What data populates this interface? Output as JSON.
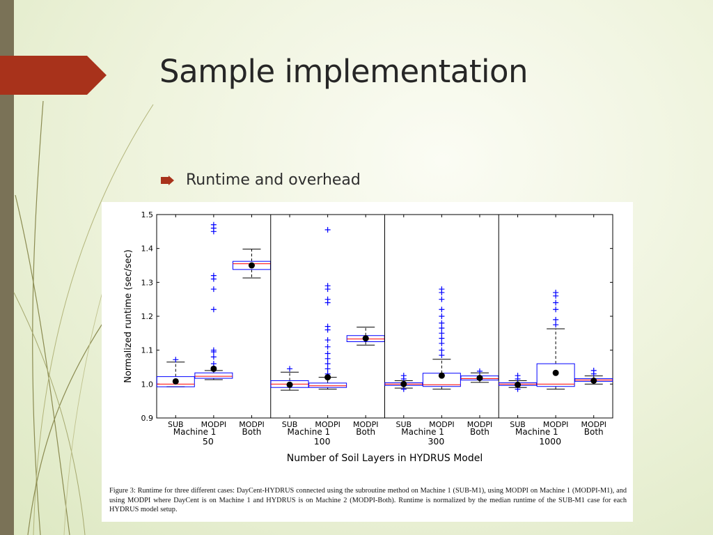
{
  "slide": {
    "title": "Sample implementation",
    "bullet": "Runtime and overhead"
  },
  "theme": {
    "accent": "#a8321b",
    "sidebar": "#7a7257",
    "line_art": "#8a8a50",
    "bullet_icon": "arrow-right-icon"
  },
  "figure": {
    "caption": "Figure 3: Runtime for three different cases: DayCent-HYDRUS connected using the subroutine method on Machine 1 (SUB-M1), using MODPI on Machine 1 (MODPI-M1), and using MODPI where DayCent is on Machine 1 and HYDRUS is on Machine 2 (MODPI-Both). Runtime is normalized by the median runtime of the SUB-M1 case for each HYDRUS model setup."
  },
  "chart_data": {
    "type": "box",
    "ylabel": "Normalized runtime (sec/sec)",
    "xlabel": "Number of Soil Layers in HYDRUS Model",
    "ylim": [
      0.9,
      1.5
    ],
    "yticks": [
      "0.9",
      "1.0",
      "1.1",
      "1.2",
      "1.3",
      "1.4",
      "1.5"
    ],
    "grid": false,
    "colors": {
      "box": "#0000ff",
      "median": "#ff0000",
      "whisker": "#000000",
      "flier": "#0000ff",
      "mean": "#000000"
    },
    "groups": [
      {
        "label": "50",
        "machine_label": "Machine 1",
        "both_label": "Both",
        "boxes": [
          {
            "name": "SUB",
            "q1": 0.992,
            "median": 1.0,
            "q3": 1.022,
            "whisker_low": 0.992,
            "whisker_high": 1.065,
            "mean": 1.008,
            "fliers": [
              1.072
            ]
          },
          {
            "name": "MODPI",
            "q1": 1.017,
            "median": 1.023,
            "q3": 1.033,
            "whisker_low": 1.013,
            "whisker_high": 1.04,
            "mean": 1.045,
            "fliers": [
              1.05,
              1.06,
              1.08,
              1.095,
              1.1,
              1.22,
              1.28,
              1.31,
              1.32,
              1.45,
              1.46,
              1.47
            ]
          },
          {
            "name": "MODPI",
            "q1": 1.338,
            "median": 1.355,
            "q3": 1.362,
            "whisker_low": 1.313,
            "whisker_high": 1.398,
            "mean": 1.35,
            "fliers": []
          }
        ]
      },
      {
        "label": "100",
        "machine_label": "Machine 1",
        "both_label": "Both",
        "boxes": [
          {
            "name": "SUB",
            "q1": 0.99,
            "median": 1.0,
            "q3": 1.01,
            "whisker_low": 0.982,
            "whisker_high": 1.035,
            "mean": 0.998,
            "fliers": [
              1.045
            ]
          },
          {
            "name": "MODPI",
            "q1": 0.99,
            "median": 0.995,
            "q3": 1.003,
            "whisker_low": 0.985,
            "whisker_high": 1.02,
            "mean": 1.02,
            "fliers": [
              1.03,
              1.045,
              1.06,
              1.075,
              1.09,
              1.11,
              1.13,
              1.16,
              1.17,
              1.24,
              1.25,
              1.28,
              1.29,
              1.455
            ]
          },
          {
            "name": "MODPI",
            "q1": 1.125,
            "median": 1.133,
            "q3": 1.143,
            "whisker_low": 1.115,
            "whisker_high": 1.168,
            "mean": 1.135,
            "fliers": []
          }
        ]
      },
      {
        "label": "300",
        "machine_label": "Machine 1",
        "both_label": "Both",
        "boxes": [
          {
            "name": "SUB",
            "q1": 0.996,
            "median": 1.0,
            "q3": 1.004,
            "whisker_low": 0.988,
            "whisker_high": 1.01,
            "mean": 1.0,
            "fliers": [
              0.985,
              1.015,
              1.025
            ]
          },
          {
            "name": "MODPI",
            "q1": 0.993,
            "median": 0.998,
            "q3": 1.032,
            "whisker_low": 0.985,
            "whisker_high": 1.073,
            "mean": 1.025,
            "fliers": [
              1.085,
              1.1,
              1.12,
              1.135,
              1.15,
              1.165,
              1.18,
              1.2,
              1.22,
              1.25,
              1.27,
              1.28
            ]
          },
          {
            "name": "MODPI",
            "q1": 1.012,
            "median": 1.016,
            "q3": 1.024,
            "whisker_low": 1.005,
            "whisker_high": 1.033,
            "mean": 1.018,
            "fliers": [
              1.038
            ]
          }
        ]
      },
      {
        "label": "1000",
        "machine_label": "Machine 1",
        "both_label": "Both",
        "boxes": [
          {
            "name": "SUB",
            "q1": 0.996,
            "median": 1.0,
            "q3": 1.004,
            "whisker_low": 0.99,
            "whisker_high": 1.01,
            "mean": 0.998,
            "fliers": [
              0.985,
              1.015,
              1.025
            ]
          },
          {
            "name": "MODPI",
            "q1": 0.993,
            "median": 1.0,
            "q3": 1.06,
            "whisker_low": 0.985,
            "whisker_high": 1.163,
            "mean": 1.033,
            "fliers": [
              1.175,
              1.19,
              1.22,
              1.24,
              1.26,
              1.27
            ]
          },
          {
            "name": "MODPI",
            "q1": 1.008,
            "median": 1.012,
            "q3": 1.016,
            "whisker_low": 1.0,
            "whisker_high": 1.024,
            "mean": 1.01,
            "fliers": [
              1.03,
              1.04
            ]
          }
        ]
      }
    ]
  }
}
